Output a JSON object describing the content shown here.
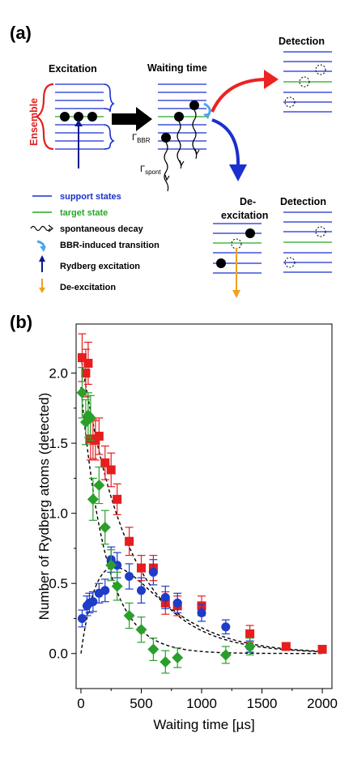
{
  "panel_a": {
    "label": "(a)",
    "titles": {
      "excitation": "Excitation",
      "waiting": "Waiting time",
      "detection_top": "Detection",
      "deexcitation_line1": "De-",
      "deexcitation_line2": "excitation",
      "detection_bottom": "Detection"
    },
    "ensemble_label": "Ensemble",
    "gamma_bbr": "Γ",
    "gamma_bbr_sub": "BBR",
    "gamma_spont": "Γ",
    "gamma_spont_sub": "spont",
    "legend": [
      {
        "text": "support states",
        "color": "#1a2fd1"
      },
      {
        "text": "target state",
        "color": "#22aa22"
      },
      {
        "text": "spontaneous decay",
        "color": "#000000"
      },
      {
        "text": "BBR-induced transition",
        "color": "#000000"
      },
      {
        "text": "Rydberg excitation",
        "color": "#000000"
      },
      {
        "text": "De-excitation",
        "color": "#000000"
      }
    ],
    "colors": {
      "support": "#1a2fd1",
      "target": "#22aa22",
      "ensemble": "#e02020",
      "arrow_red": "#ee2222",
      "arrow_blue": "#1a2fd1",
      "bbr": "#4aa8e8",
      "rydberg": "#0a1a8a",
      "deexc": "#f0a020"
    }
  },
  "panel_b": {
    "label": "(b)",
    "chart_data": {
      "type": "scatter",
      "xlabel": "Waiting time [µs]",
      "ylabel": "Number of Rydberg atoms (detected)",
      "xlim": [
        -40,
        2080
      ],
      "ylim": [
        -0.25,
        2.35
      ],
      "xticks": [
        "0",
        "500",
        "1000",
        "1500",
        "2000"
      ],
      "xtick_values": [
        0,
        500,
        1000,
        1500,
        2000
      ],
      "yticks": [
        "0.0",
        "0.5",
        "1.0",
        "1.5",
        "2.0"
      ],
      "ytick_values": [
        0,
        0.5,
        1.0,
        1.5,
        2.0
      ],
      "series": [
        {
          "marker": "square",
          "color": "#e61e1e",
          "x": [
            10,
            40,
            60,
            80,
            100,
            120,
            150,
            200,
            250,
            300,
            400,
            500,
            600,
            700,
            800,
            1000,
            1400,
            1700,
            2000
          ],
          "y": [
            2.11,
            2.0,
            2.07,
            1.53,
            1.53,
            1.52,
            1.55,
            1.36,
            1.31,
            1.1,
            0.8,
            0.61,
            0.61,
            0.36,
            0.34,
            0.34,
            0.14,
            0.05,
            0.03
          ],
          "err": [
            0.17,
            0.17,
            0.15,
            0.15,
            0.14,
            0.14,
            0.13,
            0.12,
            0.12,
            0.11,
            0.1,
            0.09,
            0.09,
            0.08,
            0.07,
            0.07,
            0.06,
            0,
            0
          ]
        },
        {
          "marker": "circle",
          "color": "#1e3cc8",
          "x": [
            10,
            50,
            70,
            100,
            150,
            200,
            250,
            300,
            400,
            500,
            600,
            700,
            800,
            1000,
            1200,
            1400
          ],
          "y": [
            0.25,
            0.34,
            0.36,
            0.37,
            0.43,
            0.45,
            0.67,
            0.63,
            0.55,
            0.45,
            0.58,
            0.4,
            0.36,
            0.29,
            0.19,
            0.05
          ],
          "err": [
            0.06,
            0.07,
            0.07,
            0.07,
            0.07,
            0.08,
            0.09,
            0.09,
            0.09,
            0.09,
            0.09,
            0.08,
            0.07,
            0.06,
            0.05,
            0.04
          ]
        },
        {
          "marker": "diamond",
          "color": "#2aa02a",
          "x": [
            10,
            40,
            60,
            80,
            100,
            150,
            200,
            250,
            300,
            400,
            500,
            600,
            700,
            800,
            1200,
            1400
          ],
          "y": [
            1.86,
            1.65,
            1.7,
            1.68,
            1.1,
            1.2,
            0.9,
            0.63,
            0.48,
            0.27,
            0.17,
            0.03,
            -0.06,
            -0.03,
            -0.01,
            0.05
          ],
          "err": [
            0.18,
            0.16,
            0.16,
            0.16,
            0.15,
            0.13,
            0.12,
            0.11,
            0.1,
            0.09,
            0.09,
            0.08,
            0.08,
            0.07,
            0.06,
            0.06
          ]
        }
      ],
      "fits": [
        {
          "kind": "exp",
          "a": 2.12,
          "tau": 390
        },
        {
          "kind": "exp",
          "a": 1.9,
          "tau": 205
        },
        {
          "kind": "rise-decay",
          "a": 2.12,
          "tau1": 390,
          "tau2": 205
        }
      ]
    }
  }
}
